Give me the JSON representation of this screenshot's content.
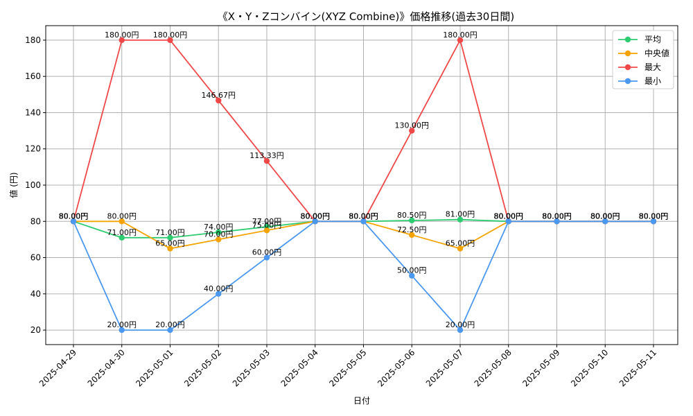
{
  "chart_data": {
    "type": "line",
    "title": "《X・Y・Zコンバイン(XYZ Combine)》価格推移(過去30日間)",
    "xlabel": "日付",
    "ylabel": "値 (円)",
    "categories": [
      "2025-04-29",
      "2025-04-30",
      "2025-05-01",
      "2025-05-02",
      "2025-05-03",
      "2025-05-04",
      "2025-05-05",
      "2025-05-06",
      "2025-05-07",
      "2025-05-08",
      "2025-05-09",
      "2025-05-10",
      "2025-05-11"
    ],
    "ylim": [
      12,
      188
    ],
    "yticks": [
      20,
      40,
      60,
      80,
      100,
      120,
      140,
      160,
      180
    ],
    "grid": true,
    "legend_position": "top-right",
    "label_suffix": "円",
    "series": [
      {
        "name": "平均",
        "color": "#2ecc71",
        "values": [
          80,
          71,
          71,
          74,
          77,
          80,
          80,
          80.5,
          81,
          80,
          80,
          80,
          80
        ]
      },
      {
        "name": "中央値",
        "color": "#f5a300",
        "values": [
          80,
          80,
          65,
          70,
          75,
          80,
          80,
          72.5,
          65,
          80,
          80,
          80,
          80
        ]
      },
      {
        "name": "最大",
        "color": "#f04848",
        "values": [
          80,
          180,
          180,
          146.67,
          113.33,
          80,
          80,
          130,
          180,
          80,
          80,
          80,
          80
        ]
      },
      {
        "name": "最小",
        "color": "#4a98f0",
        "values": [
          80,
          20,
          20,
          40,
          60,
          80,
          80,
          50,
          20,
          80,
          80,
          80,
          80
        ]
      }
    ]
  }
}
